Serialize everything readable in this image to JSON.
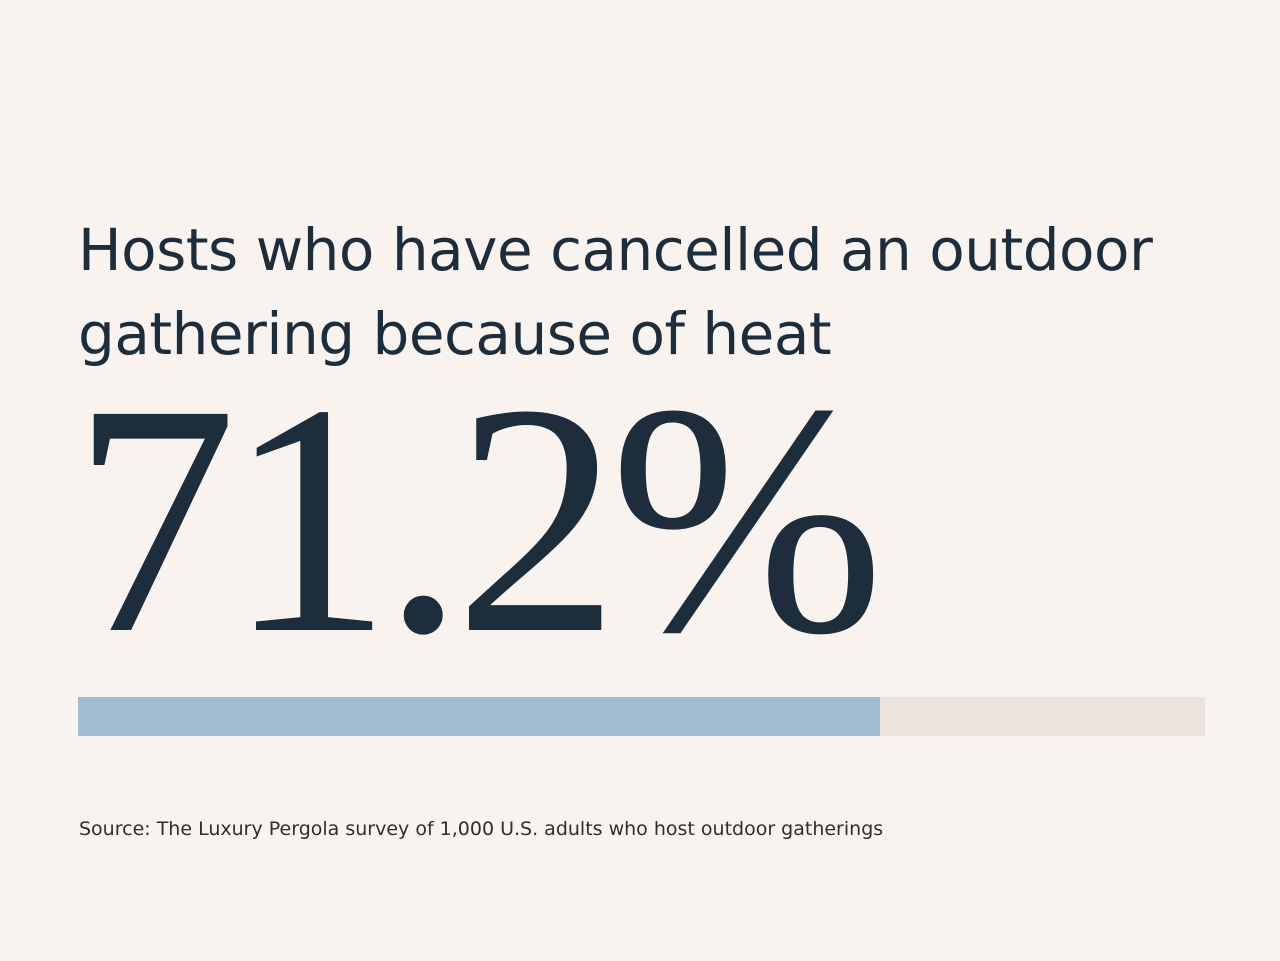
{
  "chart_data": {
    "type": "progress",
    "title": "Hosts who have cancelled an outdoor gathering because of heat",
    "values": [
      71.2
    ],
    "value_labels": [
      "71.2%"
    ],
    "xlim": [
      0,
      100
    ],
    "color": "#a2bdd1",
    "track_color": "#ebe3dd",
    "source": "Source: The Luxury Pergola survey of 1,000 U.S. adults who host outdoor gatherings"
  }
}
